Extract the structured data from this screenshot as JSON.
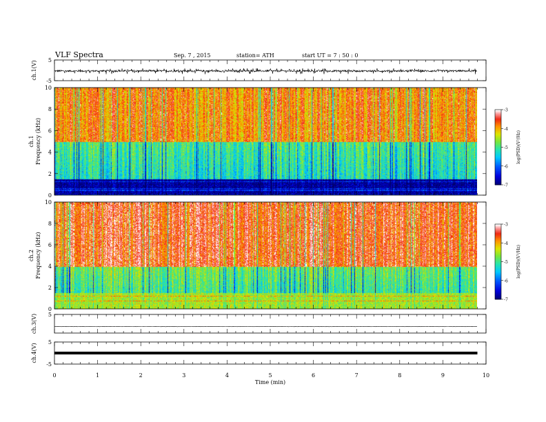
{
  "header": {
    "title": "VLF  Spectra",
    "date": "Sep. 7  , 2015",
    "station": "station= ATH",
    "start": "start  UT  =   7  : 50 : 0"
  },
  "chart_data": [
    {
      "type": "line",
      "panel": "ch1-waveform",
      "ylabel": "ch.1(V)",
      "ylim": [
        -5,
        5
      ],
      "yticks": [
        "5",
        "-5"
      ],
      "xlim": [
        0,
        10
      ],
      "baseline": -0.3,
      "amplitude_range": [
        -1.6,
        1.3
      ],
      "x_end": 9.8
    },
    {
      "type": "heatmap",
      "panel": "ch1-spectrogram",
      "ylabel_top": "ch.1",
      "ylabel": "Frequency  (kHz)",
      "ylim": [
        0,
        10
      ],
      "yticks": [
        "0",
        "2",
        "4",
        "6",
        "8",
        "10"
      ],
      "xlim": [
        0,
        10
      ],
      "x_end": 9.8,
      "colorbar": {
        "label": "log(PSD)(V²/Hz)",
        "range": [
          -7,
          -3
        ],
        "ticks": [
          "-3",
          "-4",
          "-5",
          "-6",
          "-7"
        ]
      },
      "description_levels": {
        "low_band_kHz": [
          0,
          1.5
        ],
        "low_band_logPSD": -6.8,
        "mid_band_kHz": [
          1.5,
          5
        ],
        "mid_band_logPSD": -5.2,
        "high_band_kHz": [
          5,
          10
        ],
        "high_band_logPSD": -3.8
      }
    },
    {
      "type": "heatmap",
      "panel": "ch2-spectrogram",
      "ylabel_top": "ch.2",
      "ylabel": "Frequency  (kHz)",
      "ylim": [
        0,
        10
      ],
      "yticks": [
        "0",
        "2",
        "4",
        "6",
        "8",
        "10"
      ],
      "xlim": [
        0,
        10
      ],
      "x_end": 9.8,
      "colorbar": {
        "label": "log(PSD)(V²/Hz)",
        "range": [
          -7,
          -3
        ],
        "ticks": [
          "-3",
          "-4",
          "-5",
          "-6",
          "-7"
        ]
      },
      "description_levels": {
        "low_band_kHz": [
          0,
          1.5
        ],
        "low_band_logPSD": -4.5,
        "mid_band_kHz": [
          1.5,
          4
        ],
        "mid_band_logPSD": -5.0,
        "high_band_kHz": [
          4,
          10
        ],
        "high_band_logPSD": -3.5
      }
    },
    {
      "type": "line",
      "panel": "ch3-waveform",
      "ylabel": "ch.3(V)",
      "ylim": [
        -5,
        5
      ],
      "yticks": [
        "5"
      ],
      "xlim": [
        0,
        10
      ],
      "baseline": -1.5,
      "x_end": 9.8
    },
    {
      "type": "line",
      "panel": "ch4-waveform",
      "ylabel": "ch.4(V)",
      "ylim": [
        -5,
        5
      ],
      "yticks": [
        "5",
        "-5"
      ],
      "xlim": [
        0,
        10
      ],
      "baseline": 0,
      "x_end": 9.8
    }
  ],
  "xaxis": {
    "label": "Time  (min)",
    "ticks": [
      "0",
      "1",
      "2",
      "3",
      "4",
      "5",
      "6",
      "7",
      "8",
      "9",
      "10"
    ]
  }
}
